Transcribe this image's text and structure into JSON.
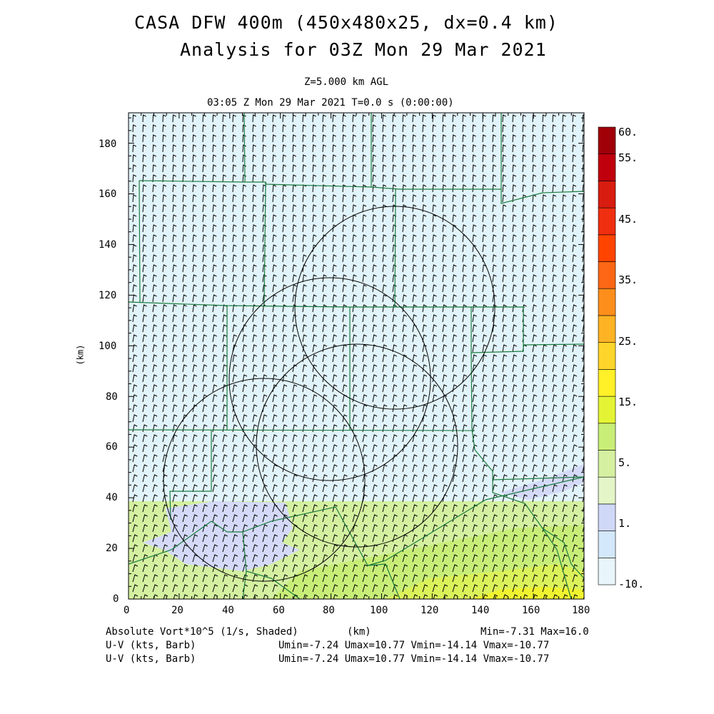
{
  "title_line1": "CASA DFW 400m (450x480x25, dx=0.4 km)",
  "title_line2": "Analysis for 03Z Mon 29 Mar 2021",
  "level_label": "Z=5.000 km AGL",
  "time_label": "03:05 Z Mon 29 Mar 2021    T=0.0 s (0:00:00)",
  "xaxis_label": "(km)",
  "yaxis_label": "(km)",
  "x_ticks": [
    "0",
    "20",
    "40",
    "60",
    "80",
    "100",
    "120",
    "140",
    "160",
    "180"
  ],
  "y_ticks": [
    "0",
    "20",
    "40",
    "60",
    "80",
    "100",
    "120",
    "140",
    "160",
    "180"
  ],
  "colorbar_labels": [
    "60.",
    "55.",
    "45.",
    "35.",
    "25.",
    "15.",
    "5.",
    "1.",
    "-10."
  ],
  "colorbar_colors": [
    "#e8f6fc",
    "#d3e8fa",
    "#d0d8f8",
    "#e4f6c8",
    "#d4f0a0",
    "#c8ee78",
    "#e4f434",
    "#fff028",
    "#fed52a",
    "#feb324",
    "#fd8e1c",
    "#fc6614",
    "#ff4400",
    "#f02e10",
    "#d81c10",
    "#c0000c",
    "#a00008"
  ],
  "footer_row1_left": "Absolute Vort*10^5 (1/s, Shaded)",
  "footer_row1_mid": "(km)",
  "footer_row1_right": "Min=-7.31 Max=16.0",
  "footer_row2_left": "U-V (kts, Barb)",
  "footer_row2_right": "Umin=-7.24 Umax=10.77 Vmin=-14.14 Vmax=-10.77",
  "footer_row3_left": "U-V (kts, Barb)",
  "footer_row3_right": "Umin=-7.24 Umax=10.77 Vmin=-14.14 Vmax=-10.77",
  "colors": {
    "background_field": "#e2f4fb",
    "low_band": "#d4f0a0",
    "high_band": "#e4f434",
    "negative_blob": "#d4daf8",
    "county_lines": "#1a7a3c",
    "radar_rings": "#000000"
  }
}
